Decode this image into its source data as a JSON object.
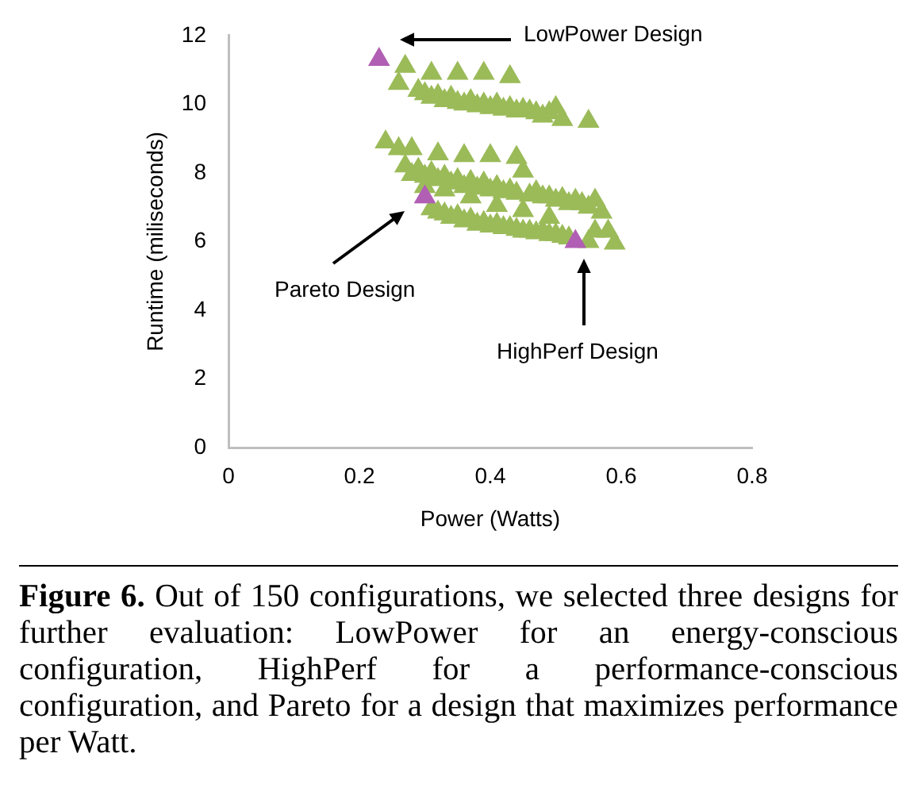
{
  "chart_data": {
    "type": "scatter",
    "xlabel": "Power (Watts)",
    "ylabel": "Runtime (miliseconds)",
    "xlim": [
      0,
      0.8
    ],
    "xticks": [
      0,
      0.2,
      0.4,
      0.6,
      0.8
    ],
    "ylim": [
      0,
      12
    ],
    "yticks": [
      0,
      2,
      4,
      6,
      8,
      10,
      12
    ],
    "grid": false,
    "legend": false,
    "marker": "triangle",
    "series": [
      {
        "color": "#9bbb59",
        "x": [
          0.27,
          0.31,
          0.35,
          0.39,
          0.43,
          0.26,
          0.29,
          0.3,
          0.31,
          0.32,
          0.33,
          0.34,
          0.35,
          0.36,
          0.37,
          0.38,
          0.39,
          0.4,
          0.41,
          0.42,
          0.43,
          0.44,
          0.45,
          0.46,
          0.47,
          0.48,
          0.49,
          0.5,
          0.51,
          0.55,
          0.24,
          0.26,
          0.28,
          0.32,
          0.36,
          0.4,
          0.44,
          0.45,
          0.27,
          0.28,
          0.29,
          0.3,
          0.31,
          0.32,
          0.33,
          0.34,
          0.35,
          0.36,
          0.37,
          0.38,
          0.39,
          0.4,
          0.41,
          0.42,
          0.43,
          0.44,
          0.46,
          0.47,
          0.48,
          0.49,
          0.5,
          0.51,
          0.52,
          0.53,
          0.54,
          0.55,
          0.56,
          0.57,
          0.31,
          0.32,
          0.33,
          0.34,
          0.35,
          0.36,
          0.37,
          0.38,
          0.39,
          0.4,
          0.41,
          0.42,
          0.43,
          0.44,
          0.45,
          0.46,
          0.47,
          0.48,
          0.49,
          0.5,
          0.51,
          0.52,
          0.55,
          0.56,
          0.58,
          0.59,
          0.3,
          0.33,
          0.37,
          0.41,
          0.45,
          0.49
        ],
        "values": [
          11.1,
          10.9,
          10.9,
          10.9,
          10.8,
          10.6,
          10.4,
          10.3,
          10.2,
          10.25,
          10.1,
          10.2,
          10.05,
          10.0,
          10.1,
          9.95,
          10.0,
          9.9,
          10.0,
          9.85,
          9.9,
          9.8,
          9.85,
          9.8,
          9.75,
          9.65,
          9.75,
          9.9,
          9.55,
          9.5,
          8.9,
          8.7,
          8.7,
          8.55,
          8.5,
          8.5,
          8.45,
          8.05,
          8.2,
          7.95,
          8.1,
          7.9,
          8.0,
          7.8,
          7.9,
          7.7,
          7.8,
          7.6,
          7.75,
          7.55,
          7.7,
          7.5,
          7.6,
          7.45,
          7.5,
          7.4,
          7.35,
          7.45,
          7.3,
          7.3,
          7.2,
          7.25,
          7.1,
          7.2,
          7.1,
          7.0,
          7.2,
          6.85,
          6.95,
          6.85,
          6.8,
          6.7,
          6.75,
          6.6,
          6.65,
          6.5,
          6.55,
          6.45,
          6.5,
          6.4,
          6.4,
          6.35,
          6.3,
          6.3,
          6.25,
          6.3,
          6.2,
          6.2,
          6.15,
          6.1,
          6.0,
          6.3,
          6.3,
          5.95,
          7.6,
          7.5,
          7.3,
          7.05,
          6.9,
          6.7
        ]
      },
      {
        "color": "#b15fb4",
        "x": [
          0.23,
          0.3,
          0.53
        ],
        "values": [
          11.3,
          7.3,
          6.0
        ]
      }
    ],
    "annotations": [
      "LowPower Design",
      "Pareto Design",
      "HighPerf Design",
      "Figure 6. Out of 150 configurations, we selected three designs for further evaluation: LowPower for an energy-conscious configuration, HighPerf for a performance-conscious configuration, and Pareto for a design that maximizes performance per Watt."
    ]
  }
}
